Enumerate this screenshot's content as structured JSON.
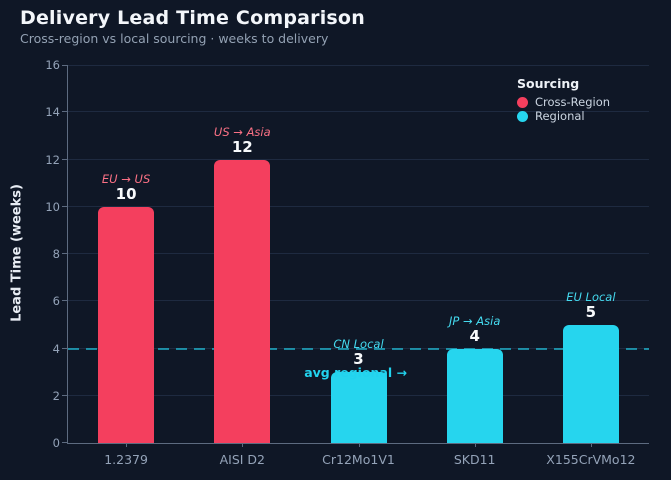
{
  "header": {
    "title": "Delivery Lead Time Comparison",
    "subtitle": "Cross-region vs local sourcing · weeks to delivery"
  },
  "legend": {
    "title": "Sourcing",
    "items": [
      {
        "label": "Cross-Region",
        "color": "#f43f5e"
      },
      {
        "label": "Regional",
        "color": "#26d5ee"
      }
    ]
  },
  "annotation": {
    "text": "avg regional →"
  },
  "chart_data": {
    "type": "bar",
    "title": "Delivery Lead Time Comparison",
    "subtitle": "Cross-region vs local sourcing · weeks to delivery",
    "categories": [
      "1.2379",
      "AISI D2",
      "Cr12Mo1V1",
      "SKD11",
      "X155CrVMo12"
    ],
    "values": [
      10,
      12,
      3,
      4,
      5
    ],
    "bar_route_labels": [
      "EU → US",
      "US → Asia",
      "CN Local",
      "JP → Asia",
      "EU Local"
    ],
    "groups": [
      "Cross-Region",
      "Cross-Region",
      "Regional",
      "Regional",
      "Regional"
    ],
    "group_colors": {
      "Cross-Region": "#f43f5e",
      "Regional": "#26d5ee"
    },
    "route_label_colors": {
      "Cross-Region": "#fb7185",
      "Regional": "#45daef"
    },
    "value_label_color": "#f8fafc",
    "xlabel": "",
    "ylabel": "Lead Time (weeks)",
    "ylim": [
      0,
      16
    ],
    "yticks": [
      0,
      2,
      4,
      6,
      8,
      10,
      12,
      14,
      16
    ],
    "grid": true,
    "background_color": "#0f1726",
    "reference_line": {
      "y": 4,
      "label": "avg regional →",
      "style": "dashed",
      "color": "#22d3ee"
    },
    "legend": {
      "title": "Sourcing",
      "position": "upper right",
      "entries": [
        "Cross-Region",
        "Regional"
      ]
    }
  }
}
